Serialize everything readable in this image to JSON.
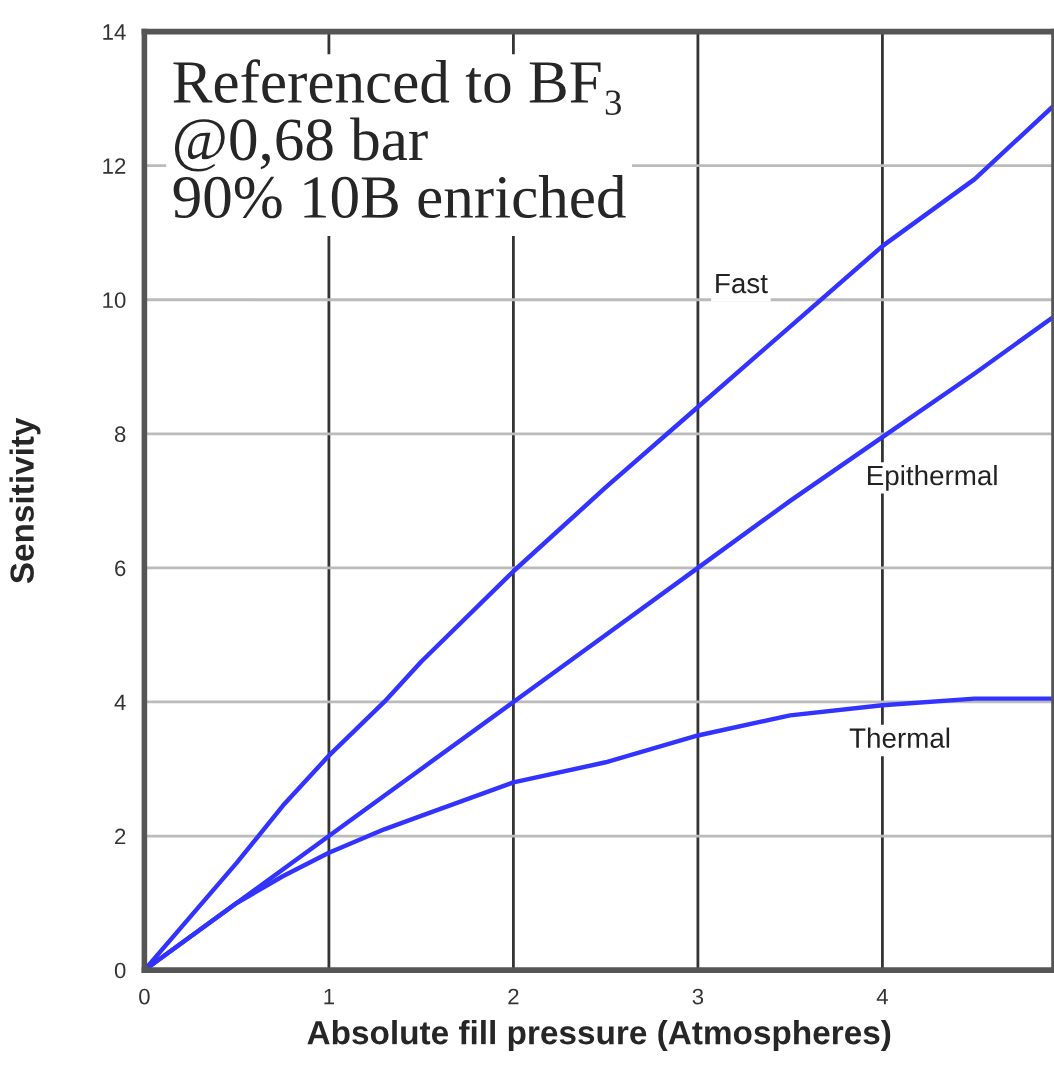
{
  "chart_data": {
    "type": "line",
    "xlabel": "Absolute fill pressure (Atmospheres)",
    "ylabel": "Sensitivity",
    "x": [
      0,
      0.5,
      0.75,
      1,
      1.3,
      1.5,
      2,
      2.5,
      3,
      3.5,
      4,
      4.5,
      4.93
    ],
    "series": [
      {
        "name": "Fast",
        "color": "#3333ff",
        "values": [
          0,
          1.6,
          2.45,
          3.2,
          4.0,
          4.6,
          5.95,
          7.2,
          8.4,
          9.6,
          10.8,
          11.8,
          12.9
        ]
      },
      {
        "name": "Epithermal",
        "color": "#3333ff",
        "values": [
          0,
          1.0,
          1.5,
          2.0,
          2.6,
          3.0,
          4.0,
          5.0,
          6.0,
          7.0,
          7.95,
          8.9,
          9.75
        ]
      },
      {
        "name": "Thermal",
        "color": "#3333ff",
        "values": [
          0,
          1.0,
          1.4,
          1.75,
          2.1,
          2.3,
          2.8,
          3.1,
          3.5,
          3.8,
          3.95,
          4.05,
          4.05
        ]
      }
    ],
    "xlim": [
      0,
      4.93
    ],
    "ylim": [
      0,
      14
    ],
    "xticks": [
      0,
      1,
      2,
      3,
      4
    ],
    "yticks": [
      0,
      2,
      4,
      6,
      8,
      10,
      12,
      14
    ],
    "grid": true,
    "marker": "none",
    "line_style": "solid",
    "annotations": [
      "Referenced to BF₃\n@0,68 bar\n90% 10B enriched"
    ]
  }
}
